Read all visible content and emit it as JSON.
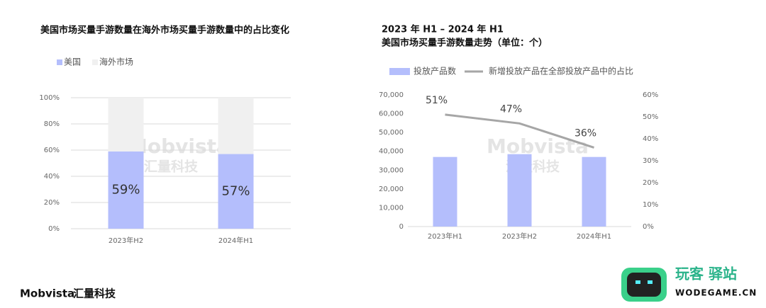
{
  "chart_data": [
    {
      "type": "bar",
      "stacked": true,
      "title": "美国市场买量手游数量在海外市场买量手游数量中的占比变化",
      "categories": [
        "2023年H2",
        "2024年H1"
      ],
      "series": [
        {
          "name": "美国",
          "color": "#b4befc",
          "values": [
            59,
            57
          ],
          "value_labels": [
            "59%",
            "57%"
          ]
        },
        {
          "name": "海外市场",
          "color": "#f0f0f0",
          "values": [
            41,
            43
          ]
        }
      ],
      "ylim": [
        0,
        100
      ],
      "yticks": [
        {
          "value": 0,
          "label": "0%"
        },
        {
          "value": 20,
          "label": "20%"
        },
        {
          "value": 40,
          "label": "40%"
        },
        {
          "value": 60,
          "label": "60%"
        },
        {
          "value": 80,
          "label": "80%"
        },
        {
          "value": 100,
          "label": "100%"
        }
      ],
      "grid": true,
      "legend": "top-left"
    },
    {
      "type": "combo",
      "title": [
        "2023 年 H1 – 2024 年 H1",
        "美国市场买量手游数量走势（单位：个）"
      ],
      "categories": [
        "2023年H1",
        "2023年H2",
        "2024年H1"
      ],
      "series": [
        {
          "name": "投放产品数",
          "type": "bar",
          "color": "#b4befc",
          "values": [
            37000,
            38500,
            37000
          ]
        },
        {
          "name": "新增投放产品在全部投放产品中的占比",
          "type": "line",
          "axis": "y2",
          "color": "#a6a6a6",
          "values": [
            51,
            47,
            36
          ],
          "value_labels": [
            "51%",
            "47%",
            "36%"
          ]
        }
      ],
      "ylim": [
        0,
        70000
      ],
      "yticks": [
        0,
        {
          "value": 10000,
          "label": "10,000"
        },
        {
          "value": 20000,
          "label": "20,000"
        },
        {
          "value": 30000,
          "label": "30,000"
        },
        {
          "value": 40000,
          "label": "40,000"
        },
        {
          "value": 50000,
          "label": "50,000"
        },
        {
          "value": 60000,
          "label": "60,000"
        },
        {
          "value": 70000,
          "label": "70,000"
        }
      ],
      "y2lim": [
        0,
        60
      ],
      "y2ticks": [
        {
          "value": 0,
          "label": "0%"
        },
        {
          "value": 10,
          "label": "10%"
        },
        {
          "value": 20,
          "label": "20%"
        },
        {
          "value": 30,
          "label": "30%"
        },
        {
          "value": 40,
          "label": "40%"
        },
        {
          "value": 50,
          "label": "50%"
        },
        {
          "value": 60,
          "label": "60%"
        }
      ],
      "grid": false,
      "legend": "top-left"
    }
  ],
  "watermark": {
    "brand": "Mobvista",
    "name": "汇量科技"
  },
  "footer": {
    "brand": "Mobvista",
    "name": "汇量科技"
  },
  "badge": {
    "title": "玩客 驿站",
    "url": "WODEGAME.CN"
  }
}
